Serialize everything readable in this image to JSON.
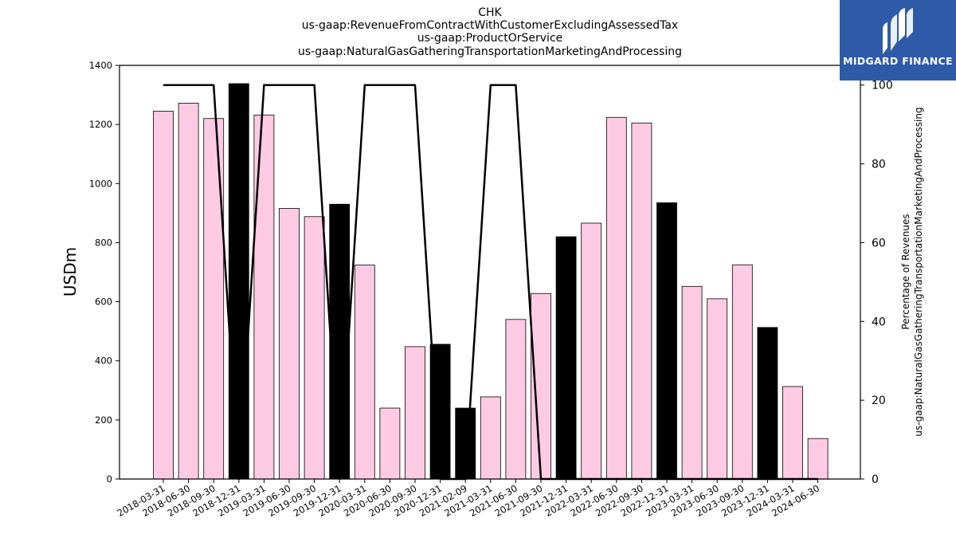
{
  "titles": {
    "line1": "CHK",
    "line2": "us-gaap:RevenueFromContractWithCustomerExcludingAssessedTax",
    "line3": "us-gaap:ProductOrService",
    "line4": "us-gaap:NaturalGasGatheringTransportationMarketingAndProcessing"
  },
  "logo": {
    "text": "MIDGARD FINANCE",
    "color": "#2f5aa8"
  },
  "colors": {
    "bar_pink": "#fccbe3",
    "bar_black": "#000000",
    "line": "#000000"
  },
  "chart_data": {
    "type": "bar",
    "categories": [
      "2018-03-31",
      "2018-06-30",
      "2018-09-30",
      "2018-12-31",
      "2019-03-31",
      "2019-06-30",
      "2019-09-30",
      "2019-12-31",
      "2020-03-31",
      "2020-06-30",
      "2020-09-30",
      "2020-12-31",
      "2021-02-09",
      "2021-03-31",
      "2021-06-30",
      "2021-09-30",
      "2021-12-31",
      "2022-03-31",
      "2022-06-30",
      "2022-09-30",
      "2022-12-31",
      "2023-03-31",
      "2023-06-30",
      "2023-09-30",
      "2023-12-31",
      "2024-03-31",
      "2024-06-30"
    ],
    "values": [
      1245,
      1272,
      1220,
      1338,
      1232,
      916,
      888,
      930,
      724,
      240,
      448,
      456,
      240,
      278,
      540,
      628,
      820,
      866,
      1224,
      1205,
      935,
      652,
      610,
      725,
      513,
      313,
      137
    ],
    "bar_colors": [
      "pink",
      "pink",
      "pink",
      "black",
      "pink",
      "pink",
      "pink",
      "black",
      "pink",
      "pink",
      "pink",
      "black",
      "black",
      "pink",
      "pink",
      "pink",
      "black",
      "pink",
      "pink",
      "pink",
      "black",
      "pink",
      "pink",
      "pink",
      "black",
      "pink",
      "pink"
    ],
    "ylabel": "USDm",
    "ylim": [
      0,
      1400
    ],
    "yticks": [
      0,
      200,
      400,
      600,
      800,
      1000,
      1200,
      1400
    ],
    "secondary": {
      "type": "line",
      "ylabel_line1": "Percentage of Revenues",
      "ylabel_line2": "us-gaap:NaturalGasGatheringTransportationMarketingAndProcessing",
      "ylim": [
        0,
        105
      ],
      "yticks": [
        0,
        20,
        40,
        60,
        80,
        100
      ],
      "values": [
        100,
        100,
        100,
        0,
        100,
        100,
        100,
        0,
        100,
        100,
        100,
        0,
        0,
        100,
        100,
        0,
        0,
        0,
        0,
        0,
        0,
        0,
        0,
        0,
        0,
        0,
        0
      ]
    },
    "grid": false,
    "legend": "none"
  }
}
